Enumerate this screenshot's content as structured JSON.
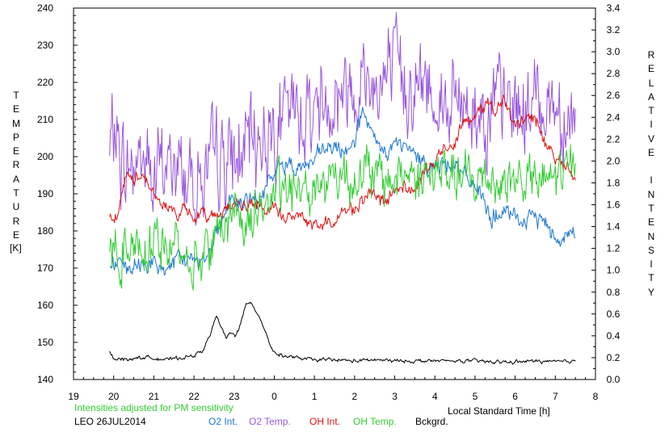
{
  "left_axis": {
    "title": "TEMPERATURE",
    "units": "[K]"
  },
  "right_axis": {
    "title": "RELATIVE INTENSITY"
  },
  "x_axis": {
    "title": "Local Standard Time [h]"
  },
  "footer": {
    "note": "Intensities adjusted for PM sensitivity",
    "site_date": "LEO 26JUL2014",
    "legend": [
      {
        "label": "O2 Int.",
        "color": "#1e78d2"
      },
      {
        "label": "O2 Temp.",
        "color": "#9955dd"
      },
      {
        "label": "OH Int.",
        "color": "#dd1111"
      },
      {
        "label": "OH Temp.",
        "color": "#33cc33"
      },
      {
        "label": "Bckgrd.",
        "color": "#000000"
      }
    ]
  },
  "chart_data": {
    "type": "line",
    "title": "",
    "xlabel": "Local Standard Time [h]",
    "x_ticks": [
      "19",
      "20",
      "21",
      "22",
      "23",
      "0",
      "1",
      "2",
      "3",
      "4",
      "5",
      "6",
      "7",
      "8"
    ],
    "x_range_hours": [
      19,
      32
    ],
    "ylabel_left": "TEMPERATURE [K]",
    "ylim_left": [
      140,
      240
    ],
    "y_ticks_left": [
      140,
      150,
      160,
      170,
      180,
      190,
      200,
      210,
      220,
      230,
      240
    ],
    "ylabel_right": "RELATIVE INTENSITY",
    "ylim_right": [
      0.0,
      3.4
    ],
    "y_ticks_right": [
      "0.0",
      "0.2",
      "0.4",
      "0.6",
      "0.8",
      "1.0",
      "1.2",
      "1.4",
      "1.6",
      "1.8",
      "2.0",
      "2.2",
      "2.4",
      "2.6",
      "2.8",
      "3.0",
      "3.2",
      "3.4"
    ],
    "series": [
      {
        "name": "O2 Temp.",
        "axis": "left",
        "color": "#9955dd",
        "noise": 9,
        "points": [
          [
            19.9,
            200
          ],
          [
            20.0,
            208
          ],
          [
            20.3,
            196
          ],
          [
            20.7,
            200
          ],
          [
            21.0,
            194
          ],
          [
            21.3,
            198
          ],
          [
            21.7,
            196
          ],
          [
            22.0,
            195
          ],
          [
            22.3,
            194
          ],
          [
            22.7,
            200
          ],
          [
            23.0,
            198
          ],
          [
            23.3,
            202
          ],
          [
            23.7,
            206
          ],
          [
            24.0,
            208
          ],
          [
            24.3,
            210
          ],
          [
            24.7,
            212
          ],
          [
            25.0,
            214
          ],
          [
            25.3,
            216
          ],
          [
            25.7,
            218
          ],
          [
            26.0,
            221
          ],
          [
            26.3,
            221
          ],
          [
            26.7,
            220
          ],
          [
            27.0,
            222
          ],
          [
            27.3,
            220
          ],
          [
            27.7,
            219
          ],
          [
            28.0,
            218
          ],
          [
            28.3,
            214
          ],
          [
            28.7,
            214
          ],
          [
            29.0,
            213
          ],
          [
            29.3,
            212
          ],
          [
            29.7,
            214
          ],
          [
            30.0,
            213
          ],
          [
            30.3,
            213
          ],
          [
            30.7,
            216
          ],
          [
            31.0,
            214
          ],
          [
            31.3,
            212
          ],
          [
            31.5,
            210
          ]
        ]
      },
      {
        "name": "O2 Int.",
        "axis": "right",
        "color": "#1e78d2",
        "noise": 0.06,
        "points": [
          [
            19.9,
            1.05
          ],
          [
            20.1,
            1.08
          ],
          [
            20.3,
            0.98
          ],
          [
            20.6,
            1.04
          ],
          [
            20.9,
            1.08
          ],
          [
            21.1,
            1.0
          ],
          [
            21.3,
            1.02
          ],
          [
            21.6,
            1.08
          ],
          [
            21.9,
            1.12
          ],
          [
            22.1,
            1.08
          ],
          [
            22.3,
            1.14
          ],
          [
            22.5,
            1.3
          ],
          [
            22.7,
            1.46
          ],
          [
            22.9,
            1.66
          ],
          [
            23.1,
            1.6
          ],
          [
            23.3,
            1.62
          ],
          [
            23.5,
            1.64
          ],
          [
            23.7,
            1.66
          ],
          [
            24.0,
            1.9
          ],
          [
            24.3,
            1.98
          ],
          [
            24.7,
            1.95
          ],
          [
            25.0,
            2.0
          ],
          [
            25.3,
            2.12
          ],
          [
            25.7,
            2.08
          ],
          [
            26.0,
            2.2
          ],
          [
            26.2,
            2.45
          ],
          [
            26.5,
            2.16
          ],
          [
            26.8,
            2.06
          ],
          [
            27.0,
            2.16
          ],
          [
            27.3,
            2.12
          ],
          [
            27.5,
            2.04
          ],
          [
            27.8,
            1.98
          ],
          [
            28.0,
            1.94
          ],
          [
            28.3,
            1.98
          ],
          [
            28.5,
            2.0
          ],
          [
            28.7,
            1.86
          ],
          [
            29.0,
            1.8
          ],
          [
            29.2,
            1.62
          ],
          [
            29.4,
            1.48
          ],
          [
            29.7,
            1.52
          ],
          [
            30.0,
            1.48
          ],
          [
            30.3,
            1.44
          ],
          [
            30.5,
            1.5
          ],
          [
            30.7,
            1.46
          ],
          [
            31.0,
            1.32
          ],
          [
            31.2,
            1.3
          ],
          [
            31.4,
            1.36
          ],
          [
            31.5,
            1.3
          ]
        ]
      },
      {
        "name": "OH Int.",
        "axis": "right",
        "color": "#dd1111",
        "noise": 0.045,
        "points": [
          [
            19.9,
            1.52
          ],
          [
            20.1,
            1.5
          ],
          [
            20.3,
            1.86
          ],
          [
            20.5,
            1.82
          ],
          [
            20.7,
            1.9
          ],
          [
            20.9,
            1.78
          ],
          [
            21.1,
            1.62
          ],
          [
            21.3,
            1.6
          ],
          [
            21.5,
            1.52
          ],
          [
            21.7,
            1.54
          ],
          [
            21.9,
            1.5
          ],
          [
            22.1,
            1.5
          ],
          [
            22.3,
            1.52
          ],
          [
            22.5,
            1.5
          ],
          [
            22.7,
            1.54
          ],
          [
            22.9,
            1.6
          ],
          [
            23.1,
            1.6
          ],
          [
            23.3,
            1.58
          ],
          [
            23.5,
            1.62
          ],
          [
            23.7,
            1.55
          ],
          [
            24.0,
            1.56
          ],
          [
            24.2,
            1.5
          ],
          [
            24.5,
            1.48
          ],
          [
            24.7,
            1.5
          ],
          [
            25.0,
            1.4
          ],
          [
            25.3,
            1.42
          ],
          [
            25.6,
            1.5
          ],
          [
            25.9,
            1.56
          ],
          [
            26.2,
            1.64
          ],
          [
            26.5,
            1.7
          ],
          [
            26.8,
            1.6
          ],
          [
            27.0,
            1.75
          ],
          [
            27.3,
            1.76
          ],
          [
            27.5,
            1.72
          ],
          [
            27.7,
            1.86
          ],
          [
            27.9,
            1.96
          ],
          [
            28.1,
            2.04
          ],
          [
            28.3,
            2.12
          ],
          [
            28.5,
            2.18
          ],
          [
            28.7,
            2.42
          ],
          [
            28.9,
            2.36
          ],
          [
            29.1,
            2.44
          ],
          [
            29.3,
            2.56
          ],
          [
            29.5,
            2.46
          ],
          [
            29.7,
            2.56
          ],
          [
            29.9,
            2.36
          ],
          [
            30.1,
            2.34
          ],
          [
            30.3,
            2.4
          ],
          [
            30.5,
            2.38
          ],
          [
            30.7,
            2.22
          ],
          [
            30.9,
            2.08
          ],
          [
            31.1,
            2.02
          ],
          [
            31.3,
            1.94
          ],
          [
            31.5,
            1.8
          ]
        ]
      },
      {
        "name": "OH Temp.",
        "axis": "left",
        "color": "#33cc33",
        "noise": 5,
        "points": [
          [
            19.9,
            176
          ],
          [
            20.2,
            174
          ],
          [
            20.5,
            178
          ],
          [
            20.8,
            176
          ],
          [
            21.0,
            178
          ],
          [
            21.3,
            175
          ],
          [
            21.6,
            176
          ],
          [
            21.9,
            172
          ],
          [
            22.1,
            172
          ],
          [
            22.3,
            176
          ],
          [
            22.5,
            178
          ],
          [
            22.8,
            182
          ],
          [
            23.0,
            186
          ],
          [
            23.3,
            182
          ],
          [
            23.6,
            186
          ],
          [
            24.0,
            190
          ],
          [
            24.3,
            190
          ],
          [
            24.7,
            192
          ],
          [
            25.0,
            192
          ],
          [
            25.3,
            194
          ],
          [
            25.7,
            196
          ],
          [
            26.0,
            194
          ],
          [
            26.3,
            196
          ],
          [
            26.7,
            193
          ],
          [
            27.0,
            194
          ],
          [
            27.3,
            196
          ],
          [
            27.7,
            194
          ],
          [
            28.0,
            195
          ],
          [
            28.3,
            196
          ],
          [
            28.6,
            194
          ],
          [
            29.0,
            193
          ],
          [
            29.3,
            195
          ],
          [
            29.7,
            193
          ],
          [
            30.0,
            194
          ],
          [
            30.3,
            194
          ],
          [
            30.7,
            192
          ],
          [
            31.0,
            195
          ],
          [
            31.3,
            196
          ],
          [
            31.5,
            197
          ]
        ]
      },
      {
        "name": "Bckgrd.",
        "axis": "right",
        "color": "#000000",
        "noise": 0.012,
        "points": [
          [
            19.9,
            0.26
          ],
          [
            20.0,
            0.2
          ],
          [
            20.3,
            0.18
          ],
          [
            20.6,
            0.2
          ],
          [
            21.0,
            0.2
          ],
          [
            21.3,
            0.18
          ],
          [
            21.7,
            0.2
          ],
          [
            22.0,
            0.22
          ],
          [
            22.2,
            0.26
          ],
          [
            22.4,
            0.4
          ],
          [
            22.55,
            0.58
          ],
          [
            22.7,
            0.46
          ],
          [
            22.8,
            0.38
          ],
          [
            22.95,
            0.44
          ],
          [
            23.05,
            0.4
          ],
          [
            23.15,
            0.5
          ],
          [
            23.3,
            0.68
          ],
          [
            23.4,
            0.72
          ],
          [
            23.5,
            0.66
          ],
          [
            23.65,
            0.56
          ],
          [
            23.8,
            0.42
          ],
          [
            23.9,
            0.32
          ],
          [
            24.0,
            0.24
          ],
          [
            24.2,
            0.22
          ],
          [
            24.5,
            0.2
          ],
          [
            25.0,
            0.18
          ],
          [
            25.5,
            0.18
          ],
          [
            26.0,
            0.17
          ],
          [
            26.5,
            0.18
          ],
          [
            27.0,
            0.17
          ],
          [
            27.5,
            0.17
          ],
          [
            28.0,
            0.17
          ],
          [
            28.5,
            0.17
          ],
          [
            29.0,
            0.17
          ],
          [
            29.5,
            0.16
          ],
          [
            30.0,
            0.16
          ],
          [
            30.5,
            0.17
          ],
          [
            31.0,
            0.16
          ],
          [
            31.5,
            0.17
          ]
        ]
      }
    ],
    "legend_placement": "bottom",
    "grid": false
  }
}
